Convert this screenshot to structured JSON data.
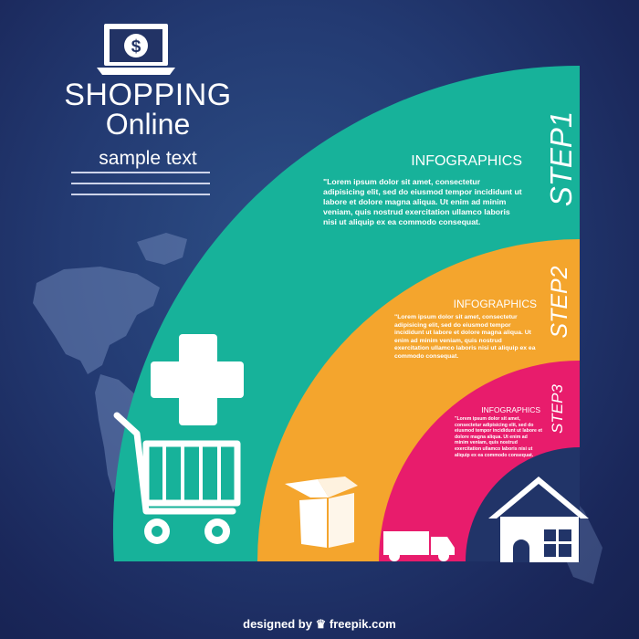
{
  "header": {
    "title_line1": "SHOPPING",
    "title_line2": "Online",
    "subtitle": "sample text"
  },
  "steps": [
    {
      "heading": "INFOGRAPHICS",
      "body": "\"Lorem ipsum dolor sit amet, consectetur adipisicing elit, sed do eiusmod tempor incididunt ut labore et dolore magna aliqua. Ut enim ad minim veniam, quis nostrud exercitation ullamco laboris nisi ut aliquip ex ea commodo consequat.",
      "label": "STEP1",
      "color": "#17b29a"
    },
    {
      "heading": "INFOGRAPHICS",
      "body": "\"Lorem ipsum dolor sit amet, consectetur adipisicing elit, sed do eiusmod tempor incididunt ut labore et dolore magna aliqua. Ut enim ad minim veniam, quis nostrud exercitation ullamco laboris nisi ut aliquip ex ea commodo consequat.",
      "label": "STEP2",
      "color": "#f4a52d"
    },
    {
      "heading": "INFOGRAPHICS",
      "body": "\"Lorem ipsum dolor sit amet, consectetur adipisicing elit, sed do eiusmod tempor incididunt ut labore et dolore magna aliqua. Ut enim ad minim veniam, quis nostrud exercitation ullamco laboris nisi ut aliquip ex ea commodo consequat.",
      "label": "STEP3",
      "color": "#e81c6c"
    }
  ],
  "icons": [
    "laptop-dollar-icon",
    "plus-icon",
    "shopping-cart-icon",
    "box-icon",
    "truck-icon",
    "house-icon",
    "world-map-icon",
    "freepik-logo-icon"
  ],
  "footer": {
    "designed_by": "designed by",
    "brand": "freepik.com"
  },
  "colors": {
    "background": "#1f3068",
    "teal": "#17b29a",
    "orange": "#f4a52d",
    "pink": "#e81c6c",
    "white": "#ffffff"
  }
}
